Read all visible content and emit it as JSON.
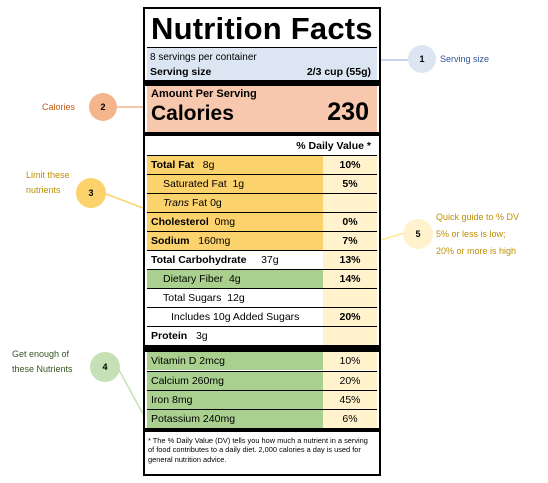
{
  "label": {
    "title": "Nutrition Facts",
    "servings_per_container": "8 servings per container",
    "serving_size_label": "Serving size",
    "serving_size_value": "2/3  cup (55g)",
    "amount_per_serving": "Amount Per Serving",
    "calories_label": "Calories",
    "calories_value": "230",
    "dv_header": "% Daily Value *",
    "nutrients": [
      {
        "name": "Total Fat",
        "amount": "8g",
        "dv": "10%"
      },
      {
        "name": "Saturated  Fat",
        "amount": "1g",
        "dv": "5%"
      },
      {
        "name": "Trans",
        "amount": "Fat  0g",
        "dv": ""
      },
      {
        "name": "Cholesterol",
        "amount": "0mg",
        "dv": "0%"
      },
      {
        "name": "Sodium",
        "amount": "160mg",
        "dv": "7%"
      },
      {
        "name": "Total Carbohydrate",
        "amount": "37g",
        "dv": "13%"
      },
      {
        "name": "Dietary Fiber",
        "amount": "4g",
        "dv": "14%"
      },
      {
        "name": "Total Sugars",
        "amount": "12g",
        "dv": ""
      },
      {
        "name": "Includes 10g Added Sugars",
        "amount": "",
        "dv": "20%"
      },
      {
        "name": "Protein",
        "amount": "3g",
        "dv": ""
      }
    ],
    "vitamins": [
      {
        "name": "Vitamin D 2mcg",
        "dv": "10%"
      },
      {
        "name": "Calcium 260mg",
        "dv": "20%"
      },
      {
        "name": "Iron 8mg",
        "dv": "45%"
      },
      {
        "name": "Potassium 240mg",
        "dv": "6%"
      }
    ],
    "footnote": "* The % Daily Value (DV) tells you how much a nutrient in a serving of food contributes to a daily diet. 2,000 calories a day is used for general nutrition advice."
  },
  "annotations": [
    {
      "number": "1",
      "text": "Serving size"
    },
    {
      "number": "2",
      "text": "Calories"
    },
    {
      "number": "3",
      "text_line1": "Limit these",
      "text_line2": "nutrients"
    },
    {
      "number": "4",
      "text_line1": "Get enough of",
      "text_line2": "these Nutrients"
    },
    {
      "number": "5",
      "text_line1": "Quick guide to % DV",
      "text_line2": "5%  or  less  is  low;",
      "text_line3": "20% or more is high"
    }
  ],
  "colors": {
    "serving_bg": "#dce6f2",
    "calories_bg": "#f7c8ad",
    "limit_bg": "#fcd26d",
    "enough_bg": "#a9d08e",
    "dv_col_bg": "#fff2cc",
    "circle1": "#dce6f2",
    "circle2": "#f4b48c",
    "circle3": "#fcd26d",
    "circle4": "#c5e0b4",
    "circle5": "#fff2cc"
  }
}
